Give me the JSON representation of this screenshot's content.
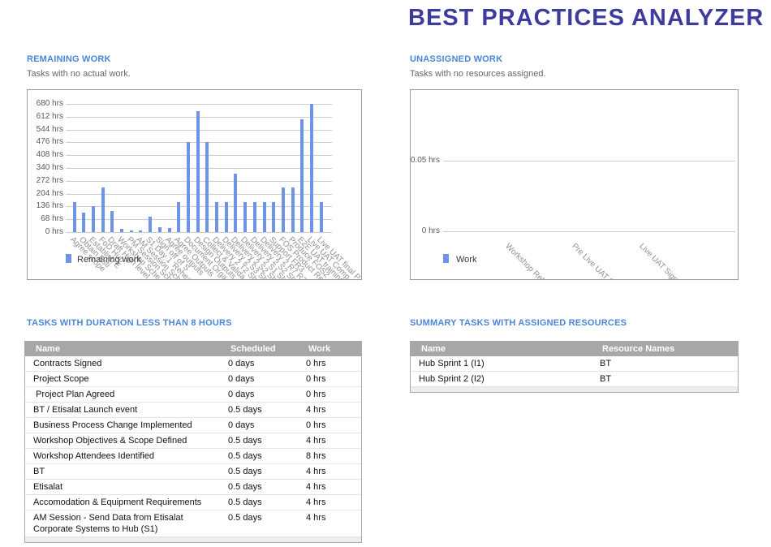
{
  "page": {
    "title": "BEST PRACTICES ANALYZER"
  },
  "colors": {
    "title": "#3d3b9e",
    "section_heading": "#4a86d8",
    "bar": "#6e94e6",
    "table_header_bg": "#a7a7a7",
    "gridline": "#cccccc"
  },
  "remaining": {
    "heading": "REMAINING WORK",
    "subtitle": "Tasks with no actual work."
  },
  "unassigned": {
    "heading": "UNASSIGNED WORK",
    "subtitle": "Tasks with no resources assigned."
  },
  "chart_data": [
    {
      "type": "bar",
      "title": "REMAINING WORK",
      "legend": "Remaining work",
      "legend_position": "bottom-left",
      "grid": true,
      "ylabel_unit": "hrs",
      "ylim": [
        0,
        680
      ],
      "ytick_step": 68,
      "categories": [
        "Agree scope",
        "Obtain Esti",
        "Establish E",
        "FoD Hub",
        "Draft High level",
        "Workshop Sche",
        "PM Session Sche",
        "AM Session Sche",
        "S1 Day 1 'Rehears",
        "Sign off of S",
        "Agree outputs",
        "Agree Outputs",
        "Document Orga",
        "Design Outputs",
        "Collect & Valida",
        "Delivery 2 T2 Sho",
        "Delivery 2 S3 Sho",
        "Delivery 2 S2 Sho",
        "Delivery 2 S1 Sho",
        "Delivery 2 S2 Sho",
        "Delivery 2 R7 R3",
        "Support FR3",
        "FOS Product Requ",
        "Produce FOS2",
        "E2E UAT training",
        "Live UAT Comp",
        "Live UAT final P"
      ],
      "values": [
        160,
        104,
        136,
        236,
        112,
        16,
        8,
        8,
        80,
        24,
        20,
        160,
        476,
        640,
        476,
        160,
        160,
        312,
        160,
        160,
        160,
        160,
        236,
        236,
        600,
        680,
        160
      ]
    },
    {
      "type": "bar",
      "title": "UNASSIGNED WORK",
      "legend": "Work",
      "legend_position": "bottom-left",
      "grid": true,
      "ylabel_unit": "hrs",
      "ylim": [
        0,
        0.05
      ],
      "yticks": [
        0,
        0.05
      ],
      "categories": [
        "Workshop Rehe",
        "Pre Live UAT P",
        "Live UAT Sign O"
      ],
      "values": [
        0,
        0,
        0
      ]
    }
  ],
  "tables": {
    "duration": {
      "heading": "TASKS WITH DURATION LESS THAN 8 HOURS",
      "columns": [
        "Name",
        "Scheduled duration",
        "Work"
      ],
      "rows": [
        [
          "Contracts Signed",
          "0 days",
          "0 hrs"
        ],
        [
          "Project Scope",
          "0 days",
          "0 hrs"
        ],
        [
          " Project Plan Agreed",
          "0 days",
          "0 hrs"
        ],
        [
          "BT / Etisalat Launch event",
          "0.5 days",
          "4 hrs"
        ],
        [
          "Business Process Change Implemented",
          "0 days",
          "0 hrs"
        ],
        [
          "Workshop Objectives & Scope Defined",
          "0.5 days",
          "4 hrs"
        ],
        [
          "Workshop Attendees Identified",
          "0.5 days",
          "8 hrs"
        ],
        [
          "BT",
          "0.5 days",
          "4 hrs"
        ],
        [
          "Etisalat",
          "0.5 days",
          "4 hrs"
        ],
        [
          "Accomodation & Equipment Requirements",
          "0.5 days",
          "4 hrs"
        ],
        [
          "AM Session - Send Data from Etisalat Corporate Systems to Hub (S1)",
          "0.5 days",
          "4 hrs"
        ]
      ]
    },
    "summary": {
      "heading": "SUMMARY TASKS WITH ASSIGNED RESOURCES",
      "columns": [
        "Name",
        "Resource Names"
      ],
      "rows": [
        [
          "Hub Sprint 1 (I1)",
          "BT"
        ],
        [
          "Hub Sprint 2 (I2)",
          "BT"
        ]
      ]
    }
  }
}
